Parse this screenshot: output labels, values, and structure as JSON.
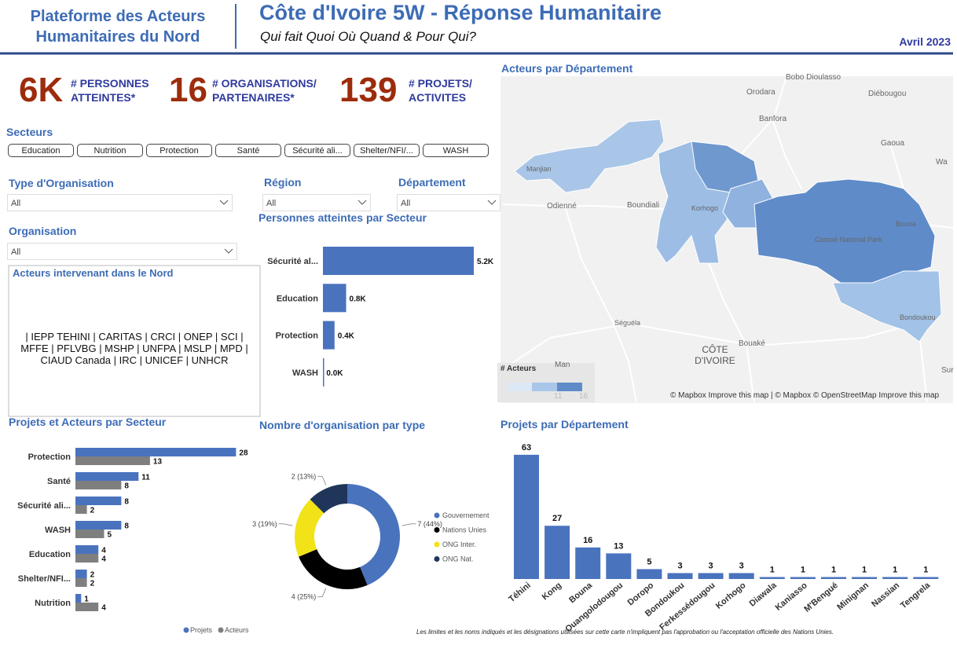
{
  "header": {
    "org_title": "Plateforme des Acteurs Humanitaires du Nord",
    "title": "Côte d'Ivoire 5W - Réponse Humanitaire",
    "subtitle": "Qui fait Quoi Où Quand & Pour Qui?",
    "date": "Avril 2023"
  },
  "kpis": [
    {
      "value": "6K",
      "label": "# PERSONNES ATTEINTES*"
    },
    {
      "value": 16,
      "label": "# ORGANISATIONS/ PARTENAIRES*"
    },
    {
      "value": 139,
      "label": "# PROJETS/ ACTIVITES"
    }
  ],
  "filters": {
    "secteurs": {
      "label": "Secteurs",
      "options": [
        "Education",
        "Nutrition",
        "Protection",
        "Santé",
        "Sécurité ali...",
        "Shelter/NFI/...",
        "WASH"
      ]
    },
    "type_organisation": {
      "label": "Type d'Organisation",
      "value": "All"
    },
    "region": {
      "label": "Région",
      "value": "All"
    },
    "departement": {
      "label": "Département",
      "value": "All"
    },
    "organisation": {
      "label": "Organisation",
      "value": "All"
    }
  },
  "actors_box": {
    "title": "Acteurs intervenant dans le Nord",
    "text": "| IEPP TEHINI | CARITAS | CRCI | ONEP | SCI | MFFE | PFLVBG | MSHP | UNFPA | MSLP | MPD | CIAUD Canada | IRC | UNICEF | UNHCR"
  },
  "map": {
    "title": "Acteurs par Département",
    "places": [
      "Bobo Dioulasso",
      "Orodara",
      "Diébougou",
      "Banfora",
      "Gaoua",
      "Wa",
      "Manjian",
      "Odienné",
      "Boundiali",
      "Korhogo",
      "Bouna",
      "Comoé National Park",
      "Séguéla",
      "Bondoukou",
      "Bouaké",
      "CÔTE D'IVOIRE",
      "Man",
      "Sur"
    ],
    "legend_title": "# Acteurs",
    "legend_ticks": [
      11,
      16
    ],
    "attribution": "© Mapbox Improve this map | © Mapbox © OpenStreetMap Improve this map"
  },
  "footnote": "Les limites et les noms indiqués et les désignations utilisées sur cette carte n'impliquent pas l'approbation ou l'acceptation officielle des Nations Unies.",
  "chart_data": [
    {
      "type": "hbar",
      "title": "Personnes atteintes par Secteur",
      "categories": [
        "Sécurité al...",
        "Education",
        "Protection",
        "WASH"
      ],
      "values": [
        5200,
        800,
        400,
        10
      ],
      "value_labels": [
        "5.2K",
        "0.8K",
        "0.4K",
        "0.0K"
      ],
      "color": "#4a73be"
    },
    {
      "type": "grouped_hbar",
      "title": "Projets et Acteurs par Secteur",
      "categories": [
        "Protection",
        "Santé",
        "Sécurité ali...",
        "WASH",
        "Education",
        "Shelter/NFI...",
        "Nutrition"
      ],
      "series": [
        {
          "name": "Projets",
          "color": "#4a73be",
          "values": [
            28,
            11,
            8,
            8,
            4,
            2,
            1
          ]
        },
        {
          "name": "Acteurs",
          "color": "#7f7f7f",
          "values": [
            13,
            8,
            2,
            5,
            4,
            2,
            4
          ]
        }
      ],
      "legend": "bottom"
    },
    {
      "type": "donut",
      "title": "Nombre d'organisation par type",
      "categories": [
        "Gouvernement",
        "Nations Unies",
        "ONG Inter.",
        "ONG Nat."
      ],
      "values": [
        7,
        4,
        3,
        2
      ],
      "value_labels": [
        "7 (44%)",
        "4 (25%)",
        "3 (19%)",
        "2 (13%)"
      ],
      "colors": [
        "#4a73be",
        "#000000",
        "#f2e318",
        "#1f3559"
      ],
      "legend": "right"
    },
    {
      "type": "bar",
      "title": "Projets par Département",
      "categories": [
        "Téhini",
        "Kong",
        "Bouna",
        "Ouangolodougou",
        "Doropo",
        "Bondoukou",
        "Ferkessédougou",
        "Korhogo",
        "Diawala",
        "Kaniasso",
        "M'Bengué",
        "Minignan",
        "Nassian",
        "Tengrela"
      ],
      "values": [
        63,
        27,
        16,
        13,
        5,
        3,
        3,
        3,
        1,
        1,
        1,
        1,
        1,
        1
      ],
      "color": "#4a73be"
    }
  ]
}
